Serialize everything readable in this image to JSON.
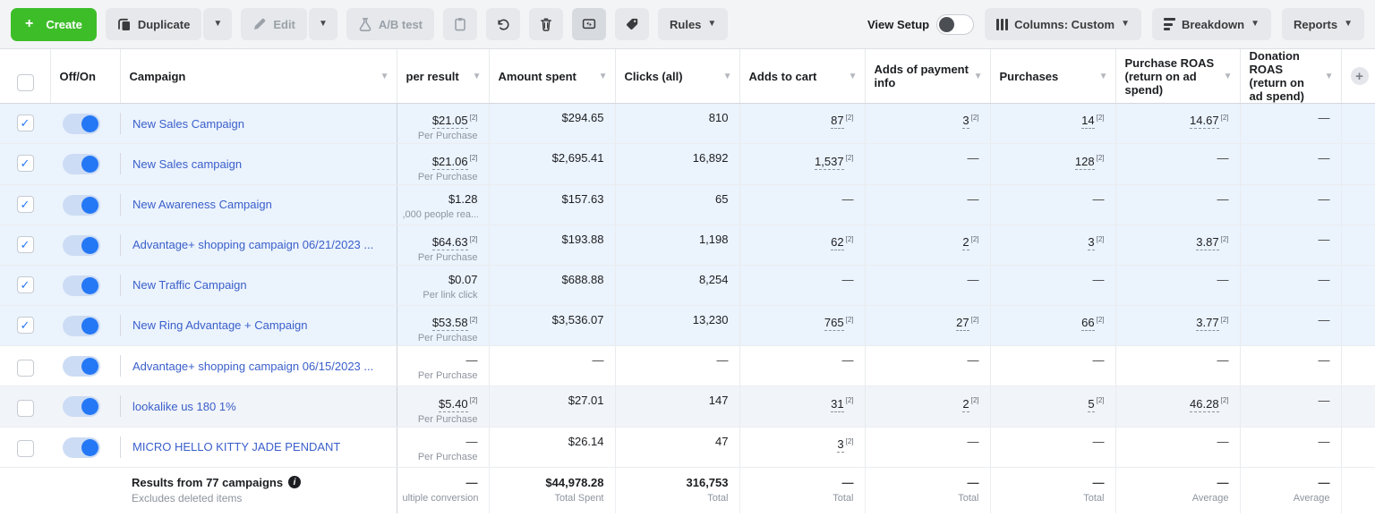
{
  "colors": {
    "accent_green": "#3dbe29",
    "link_blue": "#3a5fca",
    "toggle_blue": "#2578f5",
    "selected_row_bg": "#ebf3fd"
  },
  "toolbar": {
    "create_label": "Create",
    "duplicate_label": "Duplicate",
    "edit_label": "Edit",
    "ab_test_label": "A/B test",
    "rules_label": "Rules",
    "view_setup_label": "View Setup",
    "columns_label": "Columns: Custom",
    "breakdown_label": "Breakdown",
    "reports_label": "Reports"
  },
  "table": {
    "headers": [
      "Off/On",
      "Campaign",
      "per result",
      "Amount spent",
      "Clicks (all)",
      "Adds to cart",
      "Adds of payment info",
      "Purchases",
      "Purchase ROAS (return on ad spend)",
      "Donation ROAS (return on ad spend)"
    ],
    "rows": [
      {
        "name": "New Sales Campaign",
        "checked": true,
        "selected": true,
        "toggle_on": true,
        "cells": [
          {
            "v": "$21.05",
            "ref": "[2]",
            "dashed": true,
            "sub": "Per Purchase"
          },
          {
            "v": "$294.65"
          },
          {
            "v": "810"
          },
          {
            "v": "87",
            "ref": "[2]",
            "dashed": true
          },
          {
            "v": "3",
            "ref": "[2]",
            "dashed": true
          },
          {
            "v": "14",
            "ref": "[2]",
            "dashed": true
          },
          {
            "v": "14.67",
            "ref": "[2]",
            "dashed": true
          },
          {
            "v": "—"
          }
        ]
      },
      {
        "name": "New Sales campaign",
        "checked": true,
        "selected": true,
        "toggle_on": true,
        "cells": [
          {
            "v": "$21.06",
            "ref": "[2]",
            "dashed": true,
            "sub": "Per Purchase"
          },
          {
            "v": "$2,695.41"
          },
          {
            "v": "16,892"
          },
          {
            "v": "1,537",
            "ref": "[2]",
            "dashed": true
          },
          {
            "v": "—"
          },
          {
            "v": "128",
            "ref": "[2]",
            "dashed": true
          },
          {
            "v": "—"
          },
          {
            "v": "—"
          }
        ]
      },
      {
        "name": "New Awareness Campaign",
        "checked": true,
        "selected": true,
        "toggle_on": true,
        "cells": [
          {
            "v": "$1.28",
            "sub": ",000 people rea..."
          },
          {
            "v": "$157.63"
          },
          {
            "v": "65"
          },
          {
            "v": "—"
          },
          {
            "v": "—"
          },
          {
            "v": "—"
          },
          {
            "v": "—"
          },
          {
            "v": "—"
          }
        ]
      },
      {
        "name": "Advantage+ shopping campaign 06/21/2023 ...",
        "checked": true,
        "selected": true,
        "toggle_on": true,
        "cells": [
          {
            "v": "$64.63",
            "ref": "[2]",
            "dashed": true,
            "sub": "Per Purchase"
          },
          {
            "v": "$193.88"
          },
          {
            "v": "1,198"
          },
          {
            "v": "62",
            "ref": "[2]",
            "dashed": true
          },
          {
            "v": "2",
            "ref": "[2]",
            "dashed": true
          },
          {
            "v": "3",
            "ref": "[2]",
            "dashed": true
          },
          {
            "v": "3.87",
            "ref": "[2]",
            "dashed": true
          },
          {
            "v": "—"
          }
        ]
      },
      {
        "name": "New Traffic Campaign",
        "checked": true,
        "selected": true,
        "toggle_on": true,
        "cells": [
          {
            "v": "$0.07",
            "sub": "Per link click"
          },
          {
            "v": "$688.88"
          },
          {
            "v": "8,254"
          },
          {
            "v": "—"
          },
          {
            "v": "—"
          },
          {
            "v": "—"
          },
          {
            "v": "—"
          },
          {
            "v": "—"
          }
        ]
      },
      {
        "name": "New Ring Advantage + Campaign",
        "checked": true,
        "selected": true,
        "toggle_on": true,
        "cells": [
          {
            "v": "$53.58",
            "ref": "[2]",
            "dashed": true,
            "sub": "Per Purchase"
          },
          {
            "v": "$3,536.07"
          },
          {
            "v": "13,230"
          },
          {
            "v": "765",
            "ref": "[2]",
            "dashed": true
          },
          {
            "v": "27",
            "ref": "[2]",
            "dashed": true
          },
          {
            "v": "66",
            "ref": "[2]",
            "dashed": true
          },
          {
            "v": "3.77",
            "ref": "[2]",
            "dashed": true
          },
          {
            "v": "—"
          }
        ]
      },
      {
        "name": "Advantage+ shopping campaign 06/15/2023 ...",
        "checked": false,
        "selected": false,
        "toggle_on": true,
        "cells": [
          {
            "v": "—",
            "sub": "Per Purchase"
          },
          {
            "v": "—"
          },
          {
            "v": "—"
          },
          {
            "v": "—"
          },
          {
            "v": "—"
          },
          {
            "v": "—"
          },
          {
            "v": "—"
          },
          {
            "v": "—"
          }
        ]
      },
      {
        "name": "lookalike us 180 1%",
        "checked": false,
        "selected": false,
        "stripe": true,
        "toggle_on": true,
        "cells": [
          {
            "v": "$5.40",
            "ref": "[2]",
            "dashed": true,
            "sub": "Per Purchase"
          },
          {
            "v": "$27.01"
          },
          {
            "v": "147"
          },
          {
            "v": "31",
            "ref": "[2]",
            "dashed": true
          },
          {
            "v": "2",
            "ref": "[2]",
            "dashed": true
          },
          {
            "v": "5",
            "ref": "[2]",
            "dashed": true
          },
          {
            "v": "46.28",
            "ref": "[2]",
            "dashed": true
          },
          {
            "v": "—"
          }
        ]
      },
      {
        "name": "MICRO HELLO KITTY JADE PENDANT",
        "checked": false,
        "selected": false,
        "toggle_on": true,
        "cells": [
          {
            "v": "—",
            "sub": "Per Purchase"
          },
          {
            "v": "$26.14"
          },
          {
            "v": "47"
          },
          {
            "v": "3",
            "ref": "[2]",
            "dashed": true
          },
          {
            "v": "—"
          },
          {
            "v": "—"
          },
          {
            "v": "—"
          },
          {
            "v": "—"
          }
        ]
      }
    ]
  },
  "footer": {
    "title": "Results from 77 campaigns",
    "subtitle": "Excludes deleted items",
    "cells": [
      {
        "v": "—",
        "sub": "ultiple conversions"
      },
      {
        "v": "$44,978.28",
        "sub": "Total Spent"
      },
      {
        "v": "316,753",
        "sub": "Total"
      },
      {
        "v": "—",
        "sub": "Total"
      },
      {
        "v": "—",
        "sub": "Total"
      },
      {
        "v": "—",
        "sub": "Total"
      },
      {
        "v": "—",
        "sub": "Average"
      },
      {
        "v": "—",
        "sub": "Average"
      }
    ]
  }
}
